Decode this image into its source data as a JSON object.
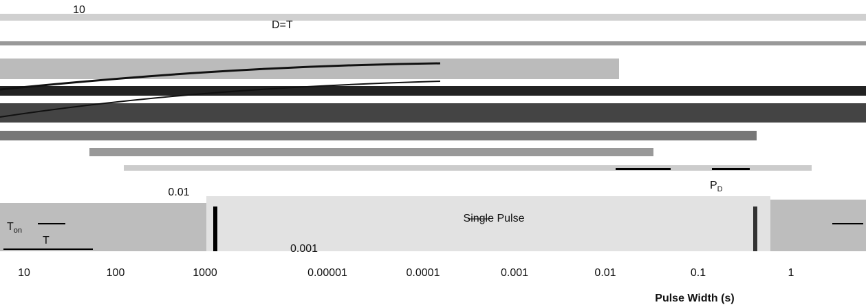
{
  "y_labels": [
    "10",
    "0.01",
    "0.001"
  ],
  "x_labels": [
    "10",
    "100",
    "1000",
    "0.00001",
    "0.0001",
    "0.001",
    "0.01",
    "0.1",
    "1"
  ],
  "x_axis_title": "Pulse Width (s)",
  "annotations": {
    "single_pulse": "Single Pulse",
    "duty": "D=T",
    "ton": {
      "text": "T",
      "subscript": "on"
    },
    "period": "T",
    "pd": {
      "text": "P",
      "subscript": "D"
    }
  }
}
